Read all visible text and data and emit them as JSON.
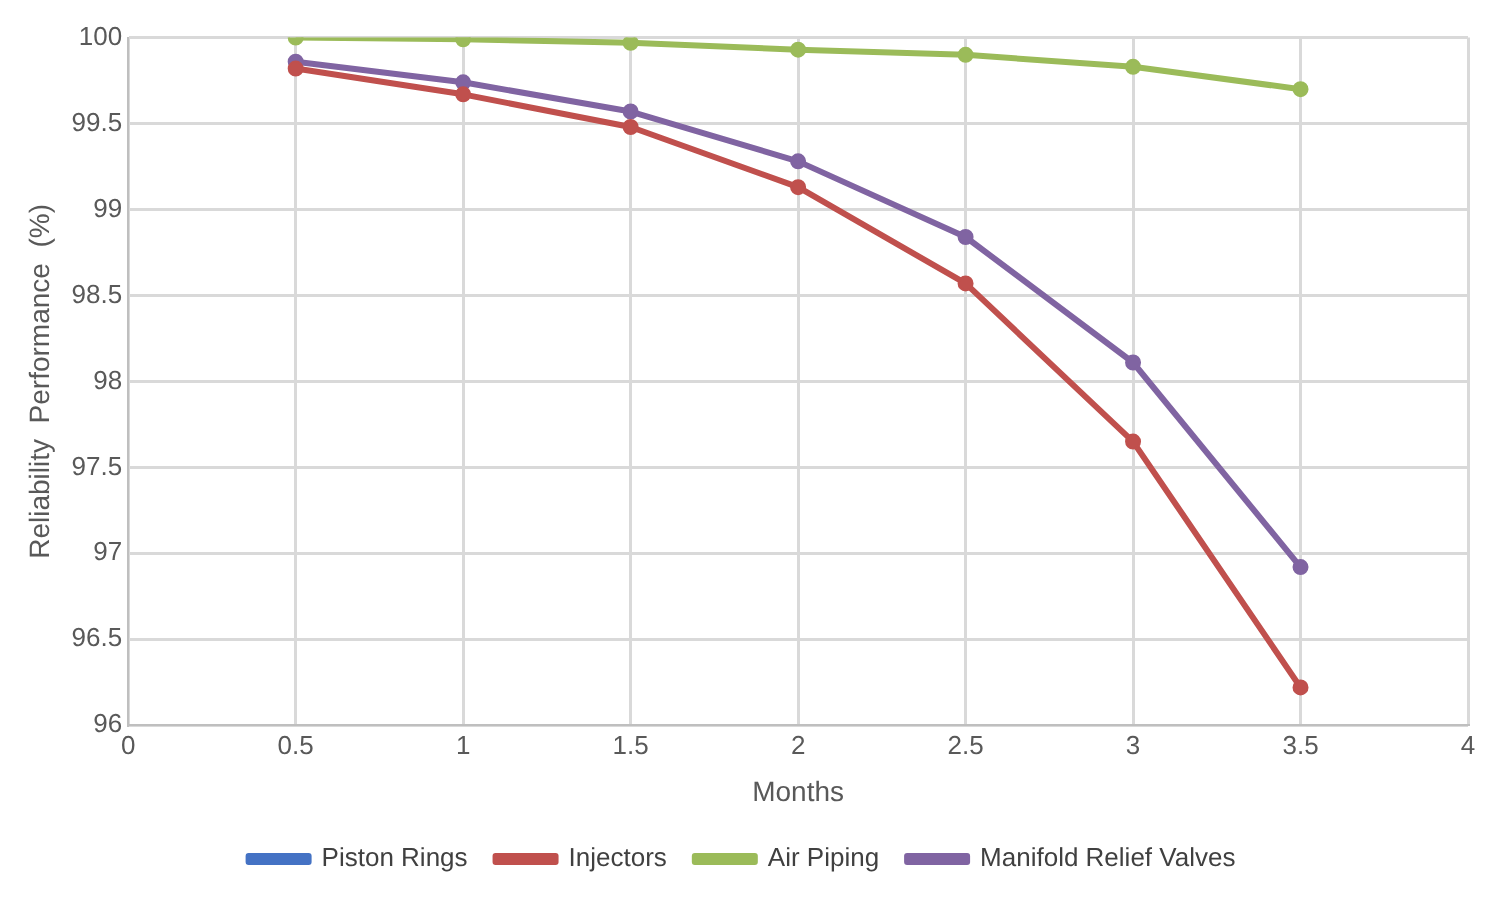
{
  "chart_data": {
    "type": "line",
    "xlabel": "Months",
    "ylabel": "Reliability  Performance  (%)",
    "x": [
      0.5,
      1,
      1.5,
      2,
      2.5,
      3,
      3.5
    ],
    "series": [
      {
        "name": "Piston Rings",
        "color": "#4472c4",
        "values": [
          null,
          null,
          null,
          null,
          null,
          null,
          null
        ]
      },
      {
        "name": "Injectors",
        "color": "#c0504d",
        "values": [
          99.82,
          99.67,
          99.48,
          99.13,
          98.57,
          97.65,
          96.22
        ]
      },
      {
        "name": "Air Piping",
        "color": "#9bbb59",
        "values": [
          100,
          99.99,
          99.97,
          99.93,
          99.9,
          99.83,
          99.7
        ]
      },
      {
        "name": "Manifold Relief Valves",
        "color": "#8064a2",
        "values": [
          99.86,
          99.74,
          99.57,
          99.28,
          98.84,
          98.11,
          96.92
        ]
      }
    ],
    "xlim": [
      0,
      4
    ],
    "xticks": [
      0,
      0.5,
      1,
      1.5,
      2,
      2.5,
      3,
      3.5,
      4
    ],
    "ylim": [
      96,
      100
    ],
    "yticks": [
      96,
      96.5,
      97,
      97.5,
      98,
      98.5,
      99,
      99.5,
      100
    ],
    "grid": true,
    "legend": "bottom",
    "marker": "circle",
    "line_style": "solid"
  }
}
